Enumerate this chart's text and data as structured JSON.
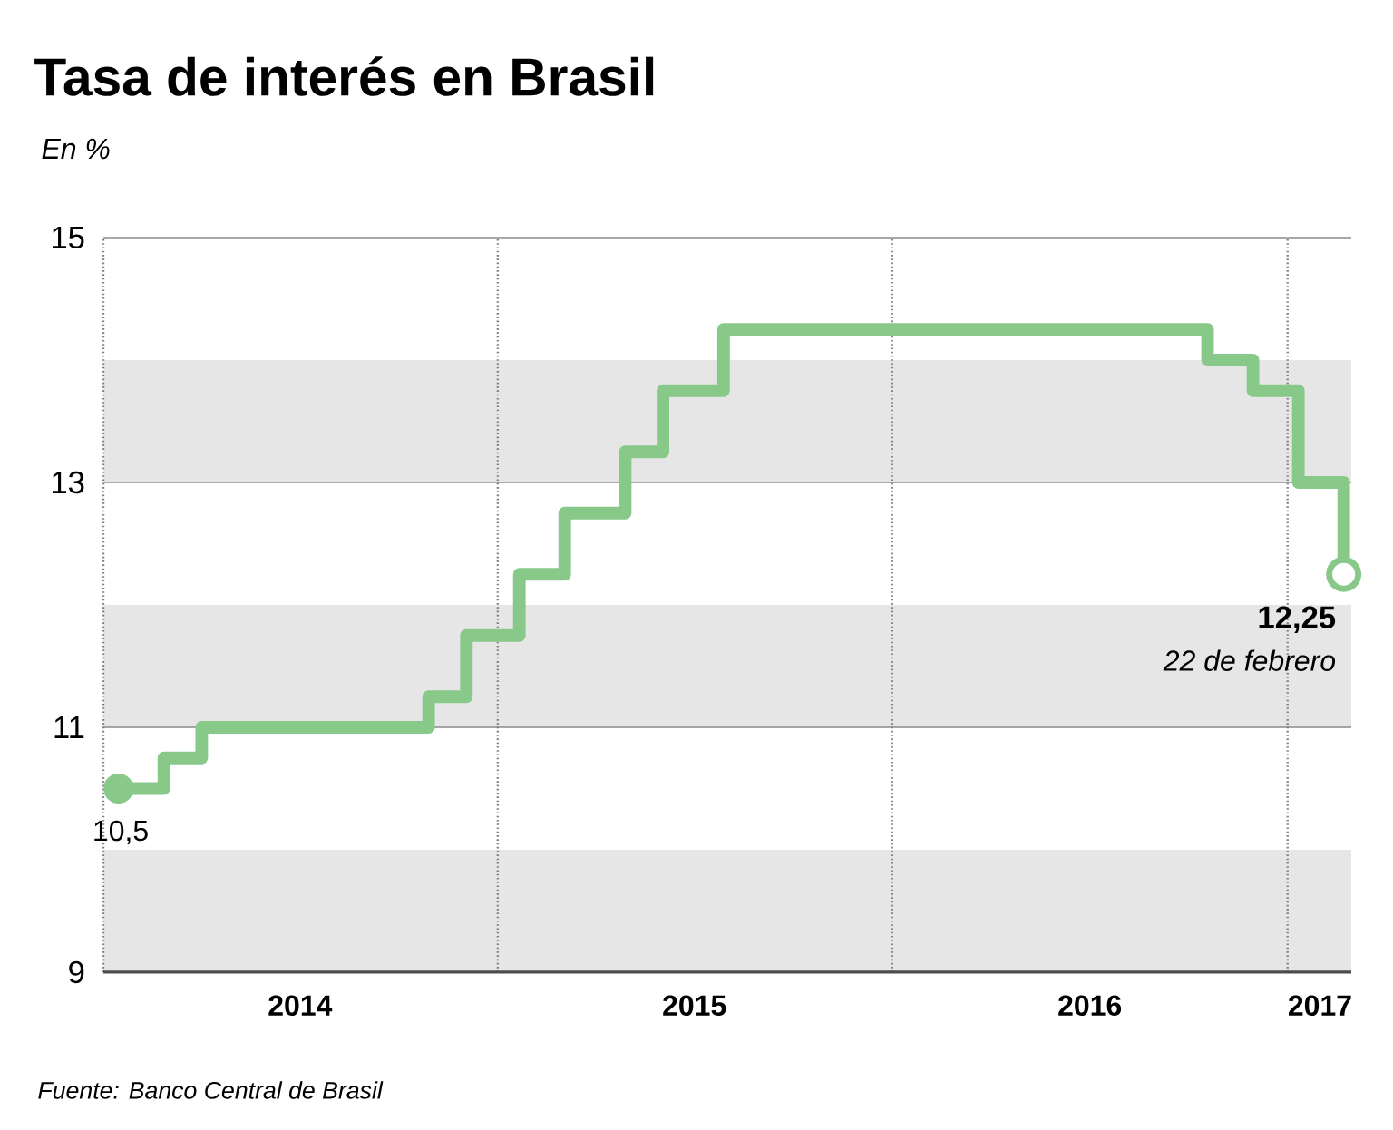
{
  "chart_data": {
    "type": "step",
    "title": "Tasa de interés en Brasil",
    "ylabel": "En %",
    "x": [
      "2014-01-15",
      "2014-02-26",
      "2014-04-02",
      "2014-10-29",
      "2014-12-03",
      "2015-01-21",
      "2015-03-04",
      "2015-04-29",
      "2015-06-03",
      "2015-07-29",
      "2016-10-19",
      "2016-11-30",
      "2017-01-11",
      "2017-02-22"
    ],
    "series": [
      {
        "color": "#88c98a",
        "values": [
          10.5,
          10.75,
          11,
          11.25,
          11.75,
          12.25,
          12.75,
          13.25,
          13.75,
          14.25,
          14,
          13.75,
          13,
          12.25
        ]
      }
    ],
    "xlim": [
      "2014-01-01",
      "2017-03-01"
    ],
    "xticks": [
      {
        "value": "2014-07-02",
        "label": "2014"
      },
      {
        "value": "2015-07-02",
        "label": "2015"
      },
      {
        "value": "2016-07-02",
        "label": "2016"
      },
      {
        "value": "2017-01-31",
        "label": "2017"
      },
      {
        "value": "2014-01-01",
        "label": null
      },
      {
        "value": "2015-01-01",
        "label": null
      },
      {
        "value": "2016-01-01",
        "label": null
      },
      {
        "value": "2017-01-01",
        "label": null
      }
    ],
    "ylim": [
      9,
      15
    ],
    "yticks": [
      9,
      11,
      13,
      15
    ],
    "grid": true,
    "bands": [
      {
        "axis": "y",
        "from": 9,
        "to": 10,
        "color": "#e6e6e6"
      },
      {
        "axis": "y",
        "from": 11,
        "to": 12,
        "color": "#e6e6e6"
      },
      {
        "axis": "y",
        "from": 13,
        "to": 14,
        "color": "#e6e6e6"
      }
    ],
    "annotations": [
      {
        "text": "10,5",
        "x": "2014-01-15",
        "y": 10.5
      },
      {
        "text": "12,25",
        "x": "2017-02-22",
        "y": 12.25
      },
      {
        "text": "22 de febrero",
        "x": "2017-02-22",
        "y": 12.25
      },
      "Fuente: Banco Central de Brasil"
    ]
  }
}
